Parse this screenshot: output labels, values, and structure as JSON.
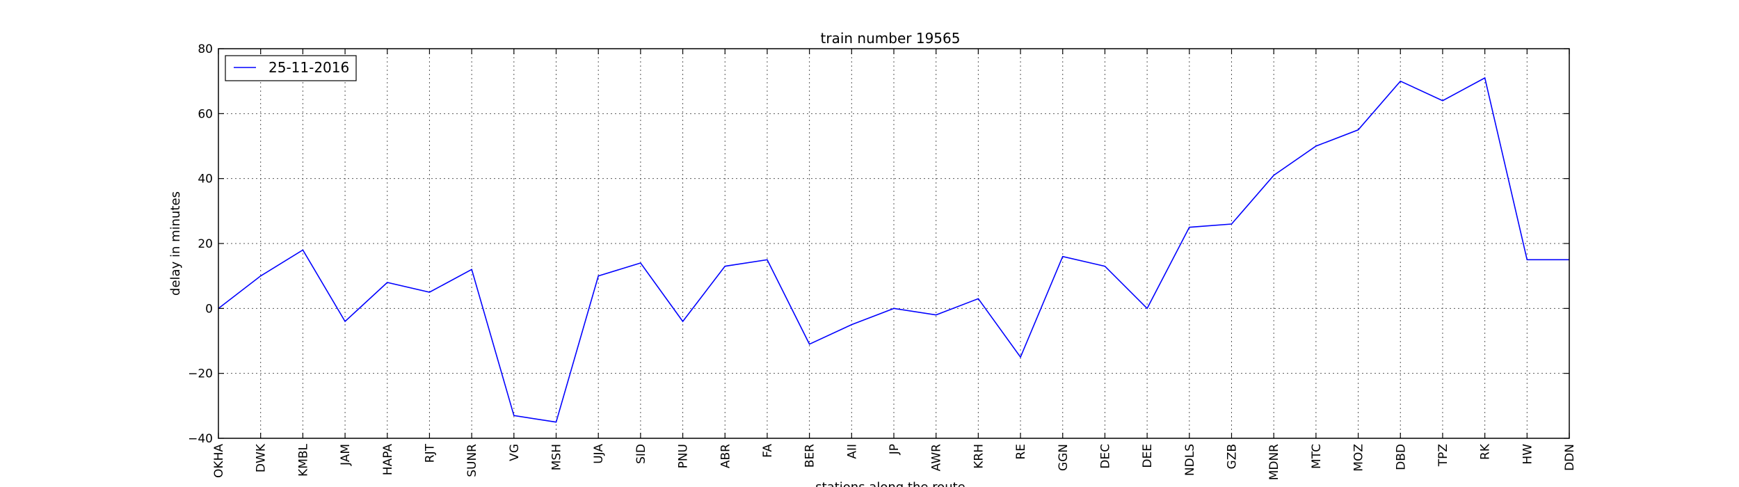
{
  "chart_data": {
    "type": "line",
    "title": "train number 19565",
    "xlabel": "stations along the route",
    "ylabel": "delay in minutes",
    "ylim": [
      -40,
      80
    ],
    "yticks": [
      -40,
      -20,
      0,
      20,
      40,
      60,
      80
    ],
    "yticks_labels": [
      "−40",
      "−20",
      "0",
      "20",
      "40",
      "60",
      "80"
    ],
    "grid": true,
    "legend_position": "top-left",
    "categories": [
      "OKHA",
      "DWK",
      "KMBL",
      "JAM",
      "HAPA",
      "RJT",
      "SUNR",
      "VG",
      "MSH",
      "UJA",
      "SID",
      "PNU",
      "ABR",
      "FA",
      "BER",
      "AII",
      "JP",
      "AWR",
      "KRH",
      "RE",
      "GGN",
      "DEC",
      "DEE",
      "NDLS",
      "GZB",
      "MDNR",
      "MTC",
      "MOZ",
      "DBD",
      "TPZ",
      "RK",
      "HW",
      "DDN"
    ],
    "series": [
      {
        "name": "25-11-2016",
        "color": "#0000ff",
        "values": [
          0,
          10,
          18,
          -4,
          8,
          5,
          12,
          -33,
          -35,
          10,
          14,
          -4,
          13,
          15,
          -11,
          -5,
          0,
          -2,
          3,
          -15,
          16,
          13,
          0,
          25,
          26,
          41,
          50,
          55,
          70,
          64,
          71,
          15,
          15
        ]
      }
    ]
  }
}
